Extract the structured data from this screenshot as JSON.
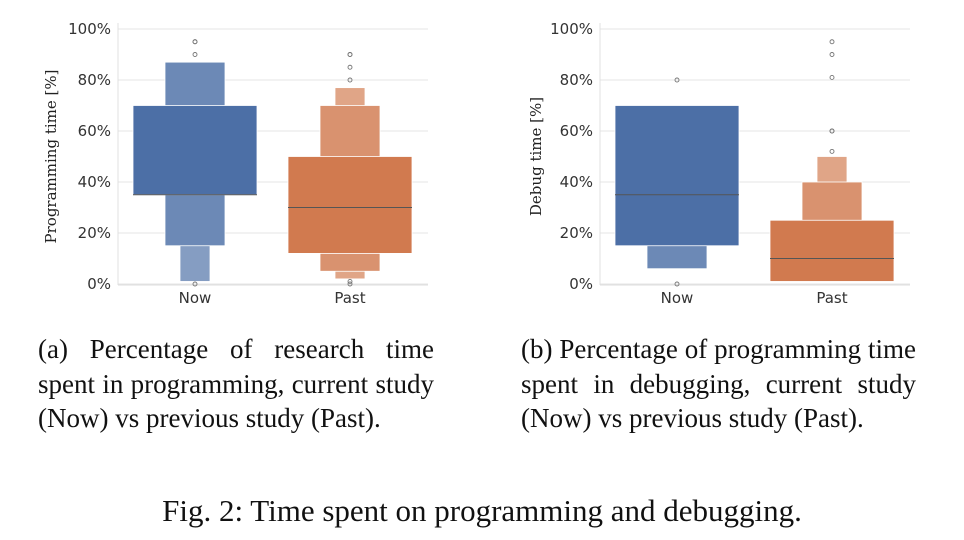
{
  "chart_data": [
    {
      "type": "boxen",
      "ylabel": "Programming time [%]",
      "ylim": [
        0,
        100
      ],
      "yticks": [
        "0%",
        "20%",
        "40%",
        "60%",
        "80%",
        "100%"
      ],
      "categories": [
        "Now",
        "Past"
      ],
      "grid": "horizontal",
      "series": [
        {
          "category": "Now",
          "color": "#4c6fa6",
          "median": 35,
          "boxes": [
            [
              35,
              70
            ],
            [
              15,
              87
            ],
            [
              1,
              87
            ]
          ],
          "outliers": [
            0,
            90,
            95,
            95
          ]
        },
        {
          "category": "Past",
          "color": "#d17a4f",
          "median": 30,
          "boxes": [
            [
              12,
              50
            ],
            [
              5,
              70
            ],
            [
              2,
              77
            ]
          ],
          "outliers": [
            0,
            1,
            80,
            85,
            90,
            90
          ]
        }
      ]
    },
    {
      "type": "boxen",
      "ylabel": "Debug time [%]",
      "ylim": [
        0,
        100
      ],
      "yticks": [
        "0%",
        "20%",
        "40%",
        "60%",
        "80%",
        "100%"
      ],
      "categories": [
        "Now",
        "Past"
      ],
      "grid": "horizontal",
      "series": [
        {
          "category": "Now",
          "color": "#4c6fa6",
          "median": 35,
          "boxes": [
            [
              15,
              70
            ],
            [
              6,
              70
            ]
          ],
          "outliers": [
            0,
            80
          ]
        },
        {
          "category": "Past",
          "color": "#d17a4f",
          "median": 10,
          "boxes": [
            [
              1,
              25
            ],
            [
              1,
              40
            ],
            [
              1,
              50
            ]
          ],
          "outliers": [
            52,
            60,
            60,
            81,
            90,
            95
          ]
        }
      ]
    }
  ],
  "captions": {
    "a": "(a) Percentage of research time spent in programming, current study (Now) vs previous study (Past).",
    "b": "(b) Percentage of programming time spent in debugging, current study (Now) vs previous study (Past).",
    "figure": "Fig. 2: Time spent on programming and debugging."
  }
}
